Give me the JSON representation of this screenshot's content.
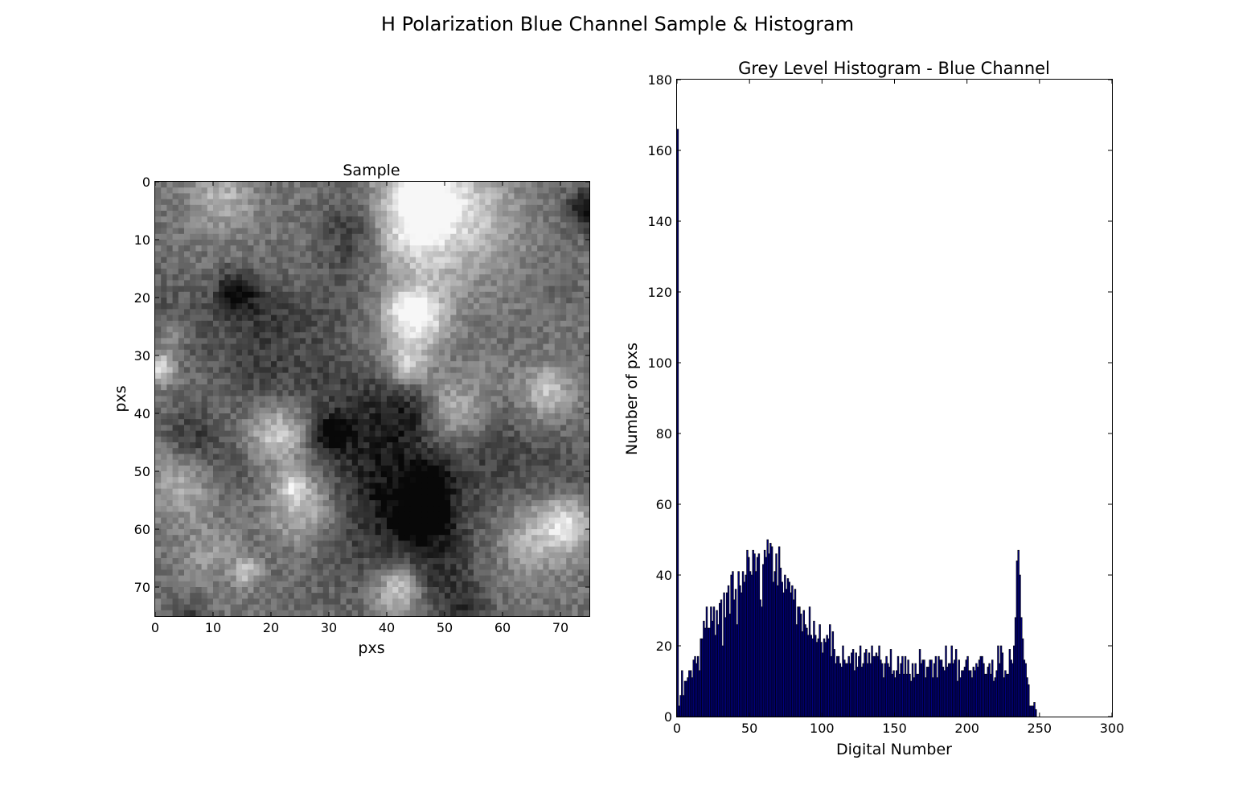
{
  "figure": {
    "suptitle": "H Polarization Blue Channel Sample & Histogram"
  },
  "chart_data": [
    {
      "type": "heatmap",
      "title": "Sample",
      "xlabel": "pxs",
      "ylabel": "pxs",
      "xlim": [
        0,
        75
      ],
      "ylim": [
        75,
        0
      ],
      "xticks": [
        0,
        10,
        20,
        30,
        40,
        50,
        60,
        70
      ],
      "yticks": [
        0,
        10,
        20,
        30,
        40,
        50,
        60,
        70
      ],
      "colormap": "greyscale",
      "grid_size": 75
    },
    {
      "type": "bar",
      "title": "Grey Level Histogram - Blue Channel",
      "xlabel": "Digital Number",
      "ylabel": "Number of pxs",
      "xlim": [
        0,
        300
      ],
      "ylim": [
        0,
        180
      ],
      "xticks": [
        0,
        50,
        100,
        150,
        200,
        250,
        300
      ],
      "yticks": [
        0,
        20,
        40,
        60,
        80,
        100,
        120,
        140,
        160,
        180
      ],
      "bar_color": "#000080",
      "grid": false,
      "x_start": 0,
      "values": [
        166,
        3,
        6,
        13,
        6,
        10,
        10,
        11,
        13,
        13,
        11,
        16,
        17,
        15,
        17,
        13,
        22,
        22,
        27,
        25,
        31,
        25,
        25,
        31,
        27,
        31,
        23,
        30,
        26,
        32,
        33,
        20,
        35,
        28,
        35,
        37,
        29,
        40,
        41,
        33,
        36,
        26,
        41,
        37,
        35,
        41,
        38,
        40,
        47,
        45,
        41,
        40,
        47,
        46,
        41,
        45,
        46,
        33,
        31,
        43,
        47,
        45,
        50,
        46,
        49,
        48,
        38,
        41,
        46,
        37,
        48,
        42,
        38,
        35,
        40,
        36,
        39,
        38,
        35,
        37,
        33,
        36,
        26,
        31,
        31,
        29,
        24,
        30,
        26,
        25,
        23,
        31,
        23,
        22,
        27,
        23,
        21,
        22,
        26,
        21,
        18,
        22,
        21,
        23,
        22,
        26,
        17,
        24,
        19,
        15,
        17,
        17,
        15,
        14,
        20,
        16,
        15,
        15,
        17,
        15,
        18,
        19,
        13,
        18,
        14,
        17,
        20,
        14,
        15,
        18,
        19,
        15,
        18,
        15,
        20,
        17,
        17,
        18,
        17,
        20,
        16,
        15,
        11,
        15,
        17,
        15,
        14,
        19,
        12,
        13,
        11,
        13,
        17,
        12,
        15,
        17,
        12,
        17,
        12,
        16,
        12,
        10,
        15,
        11,
        15,
        12,
        12,
        19,
        15,
        16,
        16,
        11,
        14,
        14,
        16,
        16,
        11,
        15,
        17,
        11,
        17,
        16,
        16,
        14,
        13,
        20,
        14,
        15,
        15,
        20,
        15,
        16,
        19,
        10,
        16,
        11,
        13,
        13,
        14,
        16,
        17,
        13,
        13,
        11,
        14,
        13,
        15,
        14,
        16,
        17,
        17,
        15,
        12,
        12,
        14,
        15,
        12,
        16,
        10,
        11,
        13,
        20,
        15,
        20,
        18,
        11,
        13,
        12,
        12,
        19,
        16,
        15,
        20,
        28,
        44,
        47,
        40,
        28,
        22,
        16,
        15,
        11,
        9,
        3,
        3,
        3,
        4,
        2
      ]
    }
  ]
}
